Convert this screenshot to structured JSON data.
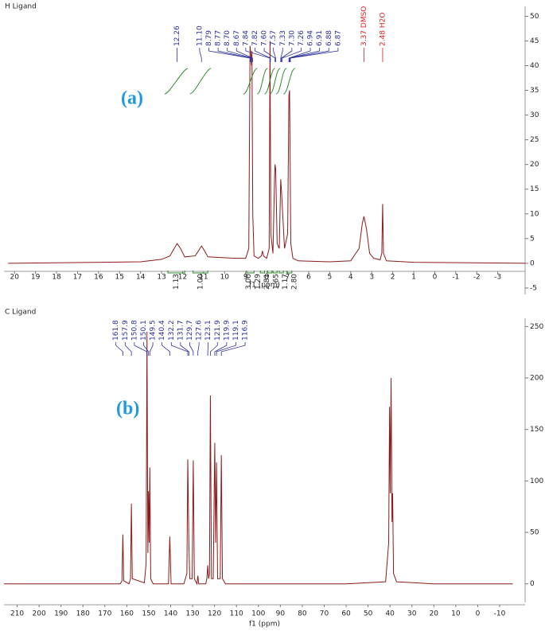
{
  "chart_data": [
    {
      "type": "line",
      "title": "H Ligand",
      "x_label": "f1 (ppm)",
      "annotation": "(a)",
      "color": "#8b1a1a",
      "xlim": [
        20.5,
        -4.3
      ],
      "ylim": [
        -6.3,
        52
      ],
      "xticks": [
        20,
        19,
        18,
        17,
        16,
        15,
        14,
        13,
        12,
        11,
        10,
        9,
        8,
        7,
        6,
        5,
        4,
        3,
        2,
        1,
        0,
        -1,
        -2,
        -3
      ],
      "yticks": [
        -5,
        0,
        5,
        10,
        15,
        20,
        25,
        30,
        35,
        40,
        45,
        50
      ],
      "x": [
        20.3,
        14,
        13,
        12.6,
        12.4,
        12.26,
        12.1,
        11.9,
        11.4,
        11.25,
        11.1,
        10.95,
        10.8,
        9.5,
        9.0,
        8.85,
        8.79,
        8.75,
        8.72,
        8.7,
        8.66,
        8.6,
        8.4,
        8.25,
        8.2,
        8.15,
        8.0,
        7.88,
        7.84,
        7.8,
        7.7,
        7.62,
        7.6,
        7.57,
        7.5,
        7.4,
        7.33,
        7.3,
        7.26,
        7.15,
        7.0,
        6.94,
        6.91,
        6.88,
        6.85,
        6.75,
        6.5,
        5,
        4,
        3.6,
        3.45,
        3.37,
        3.25,
        3.1,
        2.9,
        2.6,
        2.52,
        2.48,
        2.44,
        2.3,
        1,
        -4.3
      ],
      "values": [
        0,
        0.3,
        0.8,
        1.5,
        3,
        4,
        3,
        1.3,
        1.5,
        2.5,
        3.5,
        2.5,
        1.3,
        1,
        1,
        3,
        44,
        42,
        40,
        43,
        10,
        1.5,
        1,
        1.5,
        2.5,
        1.5,
        1,
        3,
        45,
        6,
        2,
        18,
        20,
        19,
        4,
        3,
        17,
        15,
        12,
        3,
        6,
        34,
        35,
        20,
        4,
        1,
        0.5,
        0.3,
        0.5,
        3,
        8,
        9.5,
        7,
        2,
        1,
        0.7,
        2,
        12,
        2,
        0.5,
        0.2,
        0
      ],
      "peaks": [
        {
          "label": "12.26",
          "color": "#2b2f9e"
        },
        {
          "label": "11.10",
          "color": "#2b2f9e"
        },
        {
          "label": "8.79",
          "color": "#2b2f9e"
        },
        {
          "label": "8.77",
          "color": "#2b2f9e"
        },
        {
          "label": "8.70",
          "color": "#2b2f9e"
        },
        {
          "label": "8.67",
          "color": "#2b2f9e"
        },
        {
          "label": "7.84",
          "color": "#2b2f9e"
        },
        {
          "label": "7.82",
          "color": "#2b2f9e"
        },
        {
          "label": "7.60",
          "color": "#2b2f9e"
        },
        {
          "label": "7.57",
          "color": "#2b2f9e"
        },
        {
          "label": "7.33",
          "color": "#2b2f9e"
        },
        {
          "label": "7.30",
          "color": "#2b2f9e"
        },
        {
          "label": "7.26",
          "color": "#2b2f9e"
        },
        {
          "label": "6.94",
          "color": "#2b2f9e"
        },
        {
          "label": "6.91",
          "color": "#2b2f9e"
        },
        {
          "label": "6.88",
          "color": "#2b2f9e"
        },
        {
          "label": "6.87",
          "color": "#2b2f9e"
        },
        {
          "label": "3.37 DMSO",
          "color": "#e01c1c"
        },
        {
          "label": "2.48 H2O",
          "color": "#e01c1c"
        }
      ],
      "integrals": [
        {
          "label": "1.13",
          "from": 12.7,
          "to": 11.9
        },
        {
          "label": "1.00",
          "from": 11.5,
          "to": 10.8
        },
        {
          "label": "3.00",
          "from": 8.95,
          "to": 8.6
        },
        {
          "label": "1.29",
          "from": 8.3,
          "to": 8.1
        },
        {
          "label": "2.81",
          "from": 7.95,
          "to": 7.75
        },
        {
          "label": "1.65",
          "from": 7.7,
          "to": 7.5
        },
        {
          "label": "1.17",
          "from": 7.4,
          "to": 7.2
        },
        {
          "label": "2.80",
          "from": 7.05,
          "to": 6.8
        }
      ]
    },
    {
      "type": "line",
      "title": "C Ligand",
      "x_label": "f1 (ppm)",
      "annotation": "(b)",
      "color": "#8b1a1a",
      "xlim": [
        216,
        -21.6
      ],
      "ylim": [
        -18,
        258
      ],
      "xticks": [
        210,
        200,
        190,
        180,
        170,
        160,
        150,
        140,
        130,
        120,
        110,
        100,
        90,
        80,
        70,
        60,
        50,
        40,
        30,
        20,
        10,
        0,
        -10
      ],
      "yticks": [
        0,
        50,
        100,
        150,
        200,
        250
      ],
      "x": [
        216,
        200,
        175,
        163,
        162.2,
        161.8,
        161.4,
        159,
        158.3,
        157.9,
        157.5,
        152,
        151.2,
        150.8,
        150.4,
        150.1,
        149.8,
        149.5,
        149.1,
        148,
        141,
        140.4,
        139.8,
        134,
        132.6,
        132.2,
        131.7,
        131.3,
        130.2,
        129.7,
        129.2,
        128,
        127.6,
        127.2,
        124,
        123.5,
        123.1,
        122.7,
        122.3,
        121.9,
        121.4,
        120.6,
        119.9,
        119.5,
        119.1,
        118.6,
        117.4,
        116.9,
        116.4,
        115,
        100,
        60,
        42,
        40.6,
        40.2,
        39.9,
        39.5,
        39.1,
        38.8,
        38.4,
        37,
        20,
        -16
      ],
      "values": [
        0,
        0,
        0,
        0,
        3,
        48,
        3,
        0,
        5,
        78,
        5,
        1,
        20,
        245,
        30,
        90,
        40,
        113,
        5,
        0,
        0,
        46,
        0,
        0,
        10,
        121,
        40,
        5,
        5,
        120,
        5,
        0,
        8,
        0,
        0,
        5,
        18,
        5,
        10,
        183,
        5,
        5,
        137,
        40,
        118,
        5,
        5,
        125,
        5,
        0,
        0,
        0,
        2,
        40,
        172,
        88,
        200,
        60,
        88,
        10,
        2,
        0,
        0
      ],
      "peaks": [
        {
          "label": "161.8",
          "color": "#2b2f9e"
        },
        {
          "label": "157.9",
          "color": "#2b2f9e"
        },
        {
          "label": "150.8",
          "color": "#2b2f9e"
        },
        {
          "label": "150.1",
          "color": "#2b2f9e"
        },
        {
          "label": "149.5",
          "color": "#2b2f9e"
        },
        {
          "label": "140.4",
          "color": "#2b2f9e"
        },
        {
          "label": "132.2",
          "color": "#2b2f9e"
        },
        {
          "label": "131.7",
          "color": "#2b2f9e"
        },
        {
          "label": "129.7",
          "color": "#2b2f9e"
        },
        {
          "label": "127.6",
          "color": "#2b2f9e"
        },
        {
          "label": "123.1",
          "color": "#2b2f9e"
        },
        {
          "label": "121.9",
          "color": "#2b2f9e"
        },
        {
          "label": "119.9",
          "color": "#2b2f9e"
        },
        {
          "label": "119.1",
          "color": "#2b2f9e"
        },
        {
          "label": "116.9",
          "color": "#2b2f9e"
        }
      ]
    }
  ]
}
